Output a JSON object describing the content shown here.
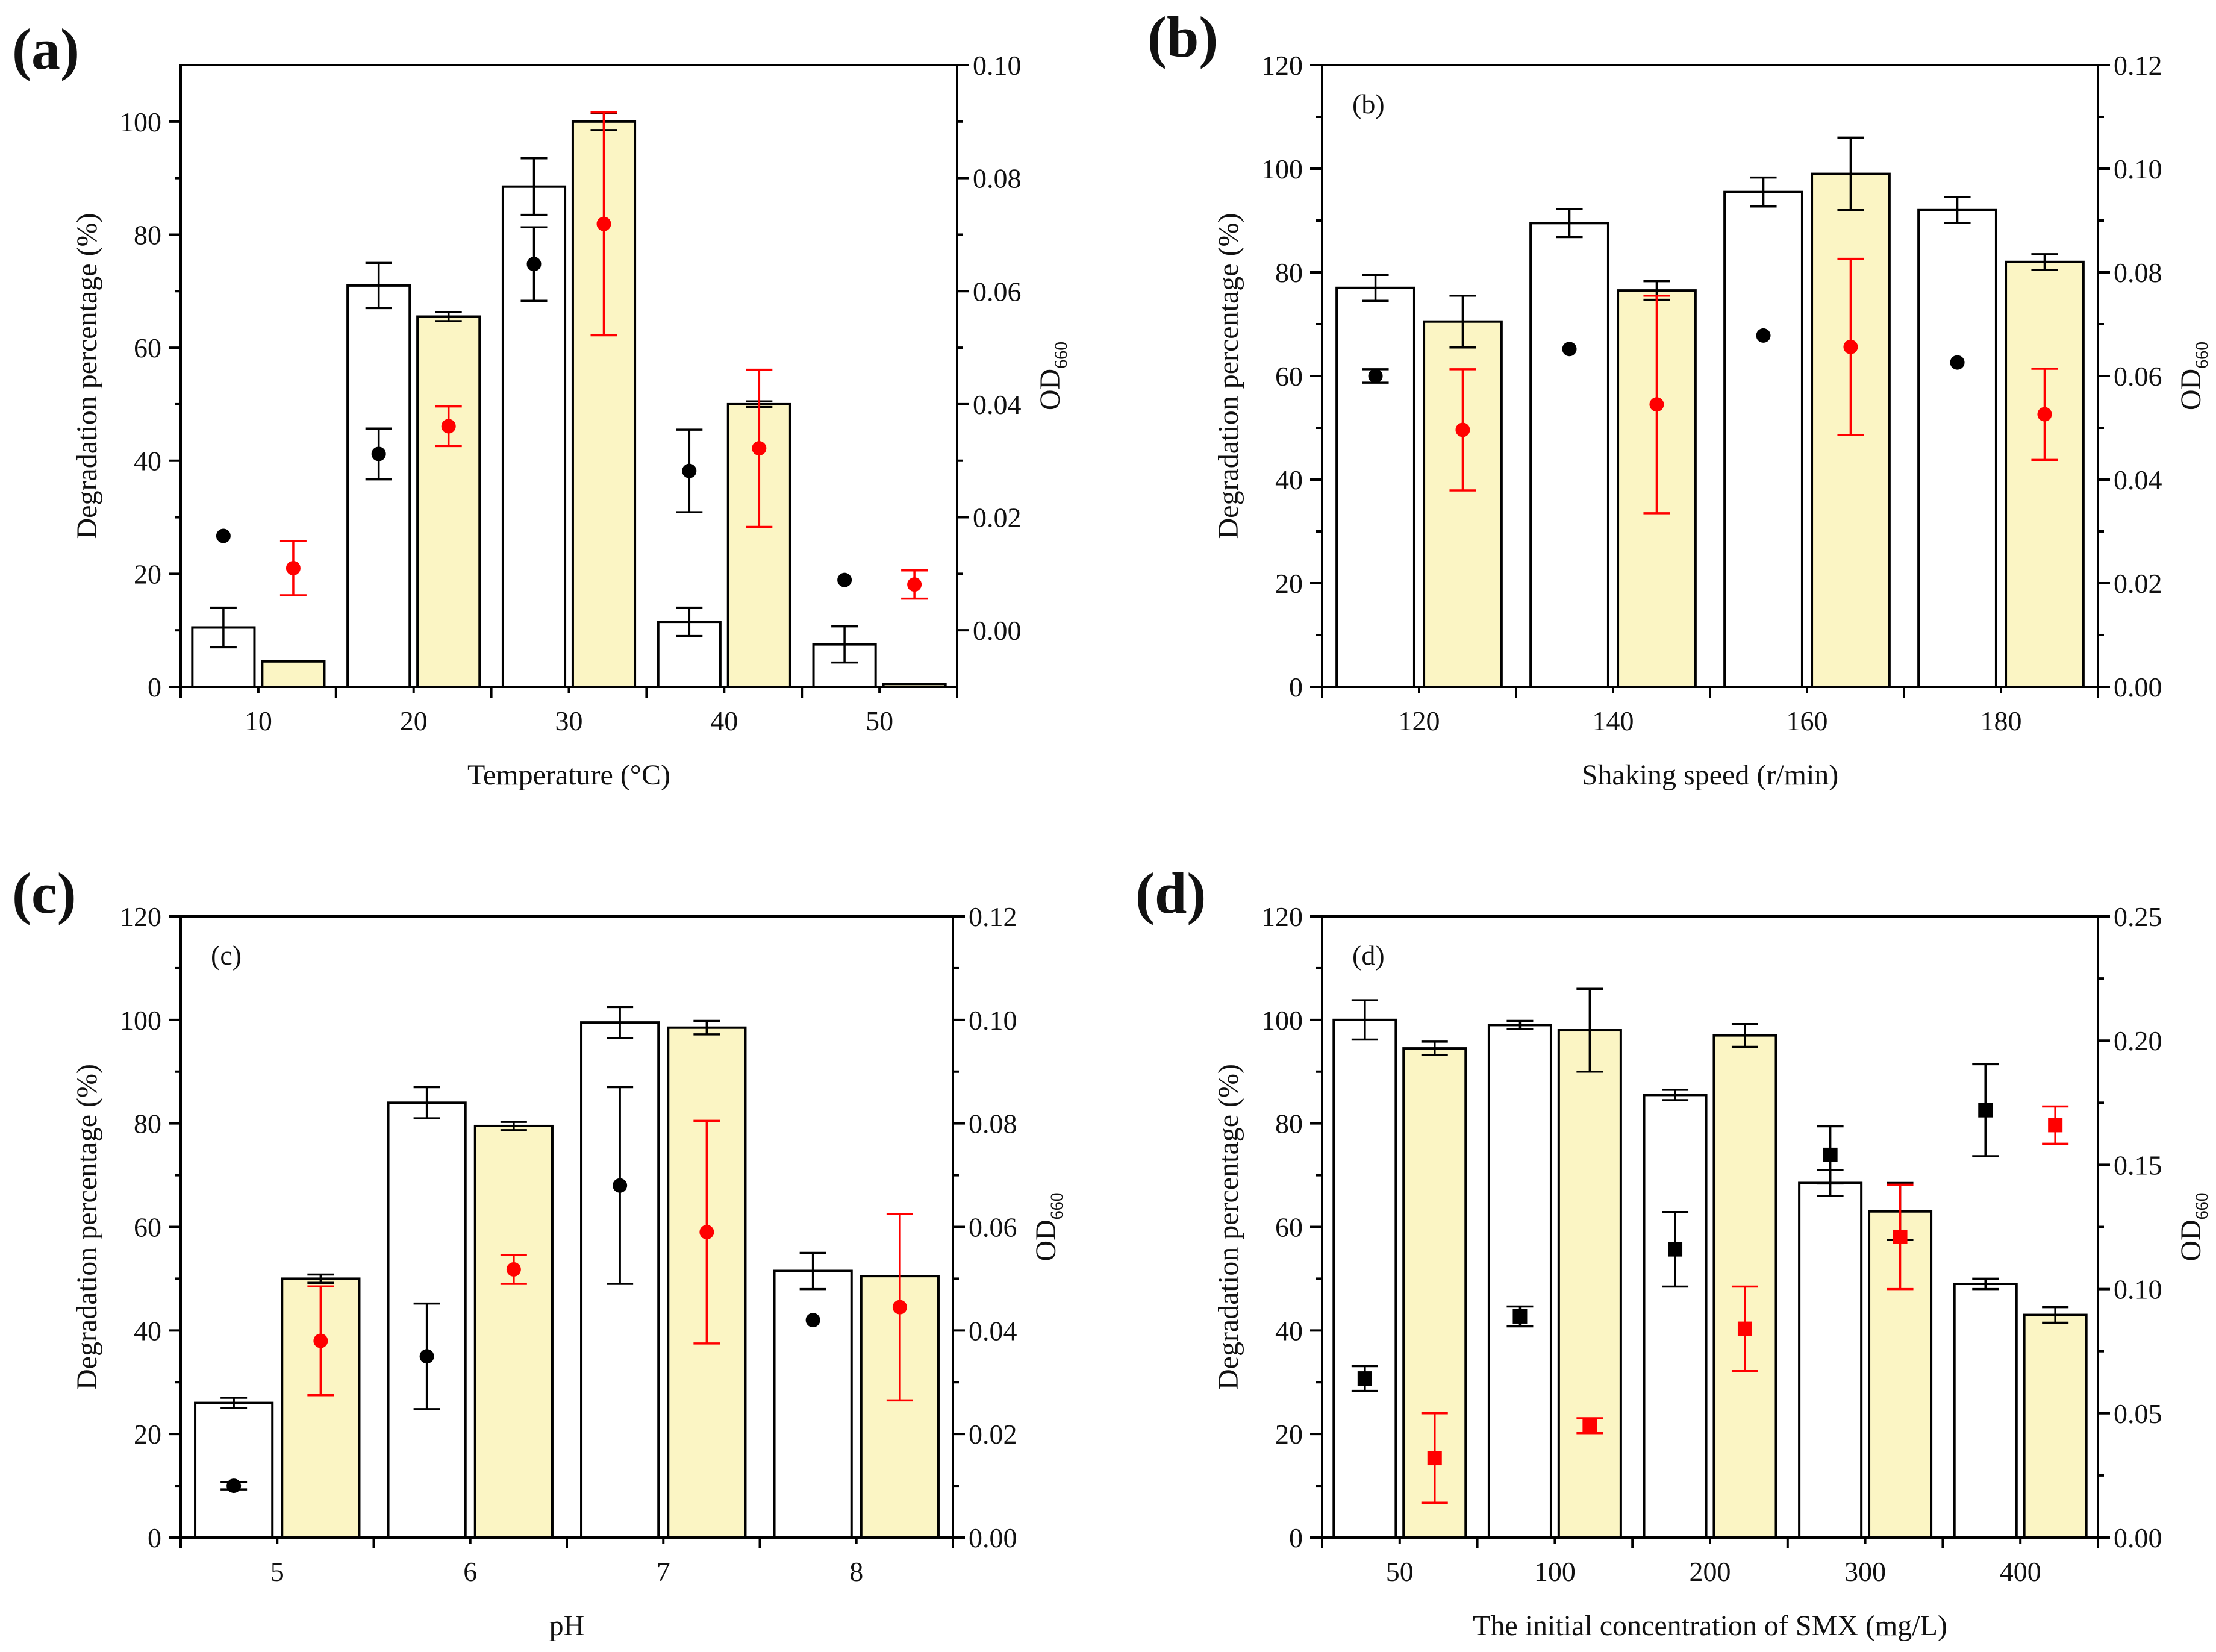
{
  "chart_data": [
    {
      "type": "bar",
      "panel_label": "(a)",
      "inner_label": "",
      "xlabel": "Temperature (°C)",
      "ylabel": "Degradation percentage (%)",
      "y2label": "OD",
      "y2label_sub": "660",
      "categories": [
        "10",
        "20",
        "30",
        "40",
        "50"
      ],
      "ylim": [
        0,
        110
      ],
      "yticks": [
        "0",
        "20",
        "40",
        "60",
        "80",
        "100"
      ],
      "yticks_values": [
        0,
        20,
        40,
        60,
        80,
        100
      ],
      "y2lim": [
        -0.01,
        0.1
      ],
      "y2ticks": [
        "0.00",
        "0.02",
        "0.04",
        "0.06",
        "0.08",
        "0.10"
      ],
      "y2ticks_values": [
        0,
        0.02,
        0.04,
        0.06,
        0.08,
        0.1
      ],
      "point_marker": "circle",
      "bars": [
        {
          "fill": "#ffffff",
          "values": [
            10.5,
            71,
            88.5,
            11.5,
            7.5
          ],
          "err": [
            3.5,
            4.0,
            5.0,
            2.5,
            3.2
          ]
        },
        {
          "fill": "#fbf5c4",
          "values": [
            4.5,
            65.5,
            100,
            50,
            0.5
          ],
          "err": [
            0,
            0.8,
            1.5,
            0.5,
            0
          ]
        }
      ],
      "points": [
        {
          "color": "#000000",
          "values": [
            0.0167,
            0.0312,
            0.0648,
            0.0282,
            0.0089
          ],
          "err": [
            0,
            0.0045,
            0.0065,
            0.0073,
            0
          ]
        },
        {
          "color": "#ff0000",
          "values": [
            0.011,
            0.0361,
            0.0719,
            0.0322,
            0.0081
          ],
          "err": [
            0.0048,
            0.0035,
            0.0197,
            0.0139,
            0.0025
          ]
        }
      ]
    },
    {
      "type": "bar",
      "panel_label": "(b)",
      "inner_label": "(b)",
      "xlabel": "Shaking speed (r/min)",
      "ylabel": "Degradation percentage (%)",
      "y2label": "OD",
      "y2label_sub": "660",
      "categories": [
        "120",
        "140",
        "160",
        "180"
      ],
      "ylim": [
        0,
        120
      ],
      "yticks": [
        "0",
        "20",
        "40",
        "60",
        "80",
        "100",
        "120"
      ],
      "yticks_values": [
        0,
        20,
        40,
        60,
        80,
        100,
        120
      ],
      "y2lim": [
        0,
        0.12
      ],
      "y2ticks": [
        "0.00",
        "0.02",
        "0.04",
        "0.06",
        "0.08",
        "0.10",
        "0.12"
      ],
      "y2ticks_values": [
        0,
        0.02,
        0.04,
        0.06,
        0.08,
        0.1,
        0.12
      ],
      "point_marker": "circle",
      "bars": [
        {
          "fill": "#ffffff",
          "values": [
            77,
            89.5,
            95.5,
            92
          ],
          "err": [
            2.5,
            2.7,
            2.8,
            2.5
          ]
        },
        {
          "fill": "#fbf5c4",
          "values": [
            70.5,
            76.5,
            99,
            82
          ],
          "err": [
            5,
            1.8,
            7,
            1.5
          ]
        }
      ],
      "points": [
        {
          "color": "#000000",
          "values": [
            0.06,
            0.0652,
            0.0678,
            0.0626
          ],
          "err": [
            0.0013,
            0,
            0,
            0
          ]
        },
        {
          "color": "#ff0000",
          "values": [
            0.0496,
            0.0545,
            0.0656,
            0.0526
          ],
          "err": [
            0.0117,
            0.021,
            0.017,
            0.0088
          ]
        }
      ]
    },
    {
      "type": "bar",
      "panel_label": "(c)",
      "inner_label": "(c)",
      "xlabel": "pH",
      "ylabel": "Degradation percentage (%)",
      "y2label": "OD",
      "y2label_sub": "660",
      "categories": [
        "5",
        "6",
        "7",
        "8"
      ],
      "ylim": [
        0,
        120
      ],
      "yticks": [
        "0",
        "20",
        "40",
        "60",
        "80",
        "100",
        "120"
      ],
      "yticks_values": [
        0,
        20,
        40,
        60,
        80,
        100,
        120
      ],
      "y2lim": [
        0,
        0.12
      ],
      "y2ticks": [
        "0.00",
        "0.02",
        "0.04",
        "0.06",
        "0.08",
        "0.10",
        "0.12"
      ],
      "y2ticks_values": [
        0,
        0.02,
        0.04,
        0.06,
        0.08,
        0.1,
        0.12
      ],
      "point_marker": "circle",
      "bars": [
        {
          "fill": "#ffffff",
          "values": [
            26,
            84,
            99.5,
            51.5
          ],
          "err": [
            1,
            3,
            3,
            3.5
          ]
        },
        {
          "fill": "#fbf5c4",
          "values": [
            50,
            79.5,
            98.5,
            50.5
          ],
          "err": [
            0.8,
            0.8,
            1.3,
            0
          ]
        }
      ],
      "points": [
        {
          "color": "#000000",
          "values": [
            0.01,
            0.035,
            0.068,
            0.042
          ],
          "err": [
            0.0007,
            0.0102,
            0.019,
            0
          ]
        },
        {
          "color": "#ff0000",
          "values": [
            0.038,
            0.0518,
            0.059,
            0.0445
          ],
          "err": [
            0.0105,
            0.0028,
            0.0215,
            0.018
          ]
        }
      ]
    },
    {
      "type": "bar",
      "panel_label": "(d)",
      "inner_label": "(d)",
      "xlabel": "The initial concentration of SMX (mg/L)",
      "ylabel": "Degradation percentage (%)",
      "y2label": "OD",
      "y2label_sub": "660",
      "categories": [
        "50",
        "100",
        "200",
        "300",
        "400"
      ],
      "ylim": [
        0,
        120
      ],
      "yticks": [
        "0",
        "20",
        "40",
        "60",
        "80",
        "100",
        "120"
      ],
      "yticks_values": [
        0,
        20,
        40,
        60,
        80,
        100,
        120
      ],
      "y2lim": [
        0,
        0.25
      ],
      "y2ticks": [
        "0.00",
        "0.05",
        "0.10",
        "0.15",
        "0.20",
        "0.25"
      ],
      "y2ticks_values": [
        0,
        0.05,
        0.1,
        0.15,
        0.2,
        0.25
      ],
      "point_marker": "square",
      "bars": [
        {
          "fill": "#ffffff",
          "values": [
            100,
            99,
            85.5,
            68.5,
            49
          ],
          "err": [
            3.8,
            0.8,
            1,
            2.5,
            1
          ]
        },
        {
          "fill": "#fbf5c4",
          "values": [
            94.5,
            98,
            97,
            63,
            43
          ],
          "err": [
            1.3,
            8,
            2.2,
            5.5,
            1.5
          ]
        }
      ],
      "points": [
        {
          "color": "#000000",
          "values": [
            0.064,
            0.089,
            0.116,
            0.154,
            0.172
          ],
          "err": [
            0.005,
            0.004,
            0.015,
            0.0115,
            0.0185
          ]
        },
        {
          "color": "#ff0000",
          "values": [
            0.032,
            0.045,
            0.084,
            0.121,
            0.166
          ],
          "err": [
            0.018,
            0.003,
            0.017,
            0.021,
            0.0075
          ]
        }
      ]
    }
  ]
}
